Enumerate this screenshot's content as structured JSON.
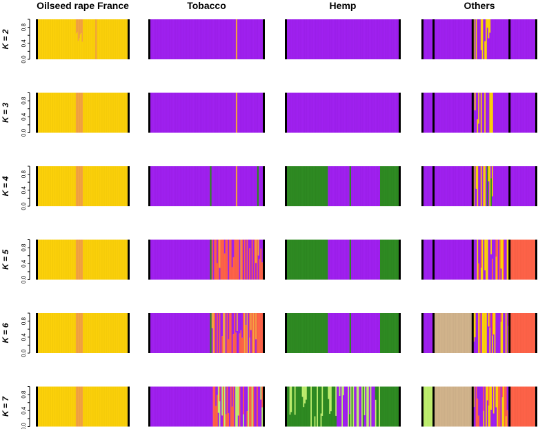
{
  "chart_data": {
    "type": "bar",
    "subtype": "stacked-admixture",
    "columns": [
      "Oilseed rape France",
      "Tobacco",
      "Hemp",
      "Others"
    ],
    "row_labels": [
      "K = 2",
      "K = 3",
      "K = 4",
      "K = 5",
      "K = 6",
      "K = 7"
    ],
    "y_ticks": [
      "0.0",
      "0.4",
      "0.8"
    ],
    "ylim": [
      0,
      1
    ],
    "colors": {
      "yellow": "#fdd20a",
      "orange": "#f5a442",
      "purple": "#a020f0",
      "green": "#2e8b22",
      "salmon": "#ff6348",
      "tan": "#d2b48c",
      "lightgreen": "#bfef6f"
    },
    "group_boundaries": [
      {
        "k": 2,
        "oilseed": [],
        "tobacco": [],
        "hemp": [],
        "others": [
          0.09,
          0.44,
          0.77
        ]
      },
      {
        "k": 3,
        "oilseed": [],
        "tobacco": [],
        "hemp": [],
        "others": [
          0.09,
          0.44,
          0.77
        ]
      },
      {
        "k": 4,
        "oilseed": [],
        "tobacco": [],
        "hemp": [],
        "others": [
          0.09,
          0.44,
          0.77
        ]
      },
      {
        "k": 5,
        "oilseed": [],
        "tobacco": [],
        "hemp": [],
        "others": [
          0.09,
          0.44,
          0.77
        ]
      },
      {
        "k": 6,
        "oilseed": [],
        "tobacco": [],
        "hemp": [],
        "others": [
          0.09,
          0.44,
          0.77
        ]
      },
      {
        "k": 7,
        "oilseed": [],
        "tobacco": [],
        "hemp": [],
        "others": [
          0.09,
          0.44,
          0.77
        ]
      }
    ],
    "panels": [
      [
        {
          "segments": [
            {
              "from": 0,
              "to": 0.42,
              "c": [
                "yellow"
              ]
            },
            {
              "from": 0.42,
              "to": 0.5,
              "c": [
                "yellow",
                "orange"
              ],
              "mix": [
                0.5,
                0.5
              ],
              "jag": true
            },
            {
              "from": 0.5,
              "to": 1,
              "c": [
                "yellow"
              ]
            }
          ],
          "stripes": [
            {
              "at": 0.64,
              "c": "orange"
            }
          ]
        },
        {
          "segments": [
            {
              "from": 0,
              "to": 1,
              "c": [
                "purple"
              ]
            }
          ],
          "stripes": [
            {
              "at": 0.76,
              "c": "orange"
            }
          ]
        },
        {
          "segments": [
            {
              "from": 0,
              "to": 1,
              "c": [
                "purple"
              ]
            }
          ],
          "stripes": []
        },
        {
          "segments": [
            {
              "from": 0,
              "to": 0.44,
              "c": [
                "purple"
              ]
            },
            {
              "from": 0.44,
              "to": 0.62,
              "c": [
                "purple",
                "yellow"
              ],
              "mix": [
                0.5,
                0.5
              ],
              "alt": true
            },
            {
              "from": 0.62,
              "to": 1,
              "c": [
                "purple"
              ]
            }
          ],
          "stripes": []
        }
      ],
      [
        {
          "segments": [
            {
              "from": 0,
              "to": 0.42,
              "c": [
                "yellow"
              ]
            },
            {
              "from": 0.42,
              "to": 0.5,
              "c": [
                "orange"
              ]
            },
            {
              "from": 0.5,
              "to": 1,
              "c": [
                "yellow"
              ]
            }
          ],
          "stripes": []
        },
        {
          "segments": [
            {
              "from": 0,
              "to": 1,
              "c": [
                "purple"
              ]
            }
          ],
          "stripes": [
            {
              "at": 0.76,
              "c": "orange"
            }
          ]
        },
        {
          "segments": [
            {
              "from": 0,
              "to": 1,
              "c": [
                "purple"
              ]
            }
          ],
          "stripes": []
        },
        {
          "segments": [
            {
              "from": 0,
              "to": 0.44,
              "c": [
                "purple"
              ]
            },
            {
              "from": 0.44,
              "to": 0.62,
              "c": [
                "purple",
                "yellow"
              ],
              "mix": [
                0.5,
                0.5
              ],
              "alt": true
            },
            {
              "from": 0.62,
              "to": 1,
              "c": [
                "purple"
              ]
            }
          ],
          "stripes": []
        }
      ],
      [
        {
          "segments": [
            {
              "from": 0,
              "to": 0.42,
              "c": [
                "yellow"
              ]
            },
            {
              "from": 0.42,
              "to": 0.5,
              "c": [
                "orange"
              ]
            },
            {
              "from": 0.5,
              "to": 1,
              "c": [
                "yellow"
              ]
            }
          ],
          "stripes": []
        },
        {
          "segments": [
            {
              "from": 0,
              "to": 1,
              "c": [
                "purple"
              ]
            }
          ],
          "stripes": [
            {
              "at": 0.53,
              "c": "green"
            },
            {
              "at": 0.76,
              "c": "orange"
            },
            {
              "at": 0.95,
              "c": "green"
            }
          ]
        },
        {
          "segments": [
            {
              "from": 0,
              "to": 0.37,
              "c": [
                "green"
              ]
            },
            {
              "from": 0.37,
              "to": 0.83,
              "c": [
                "purple"
              ]
            },
            {
              "from": 0.83,
              "to": 1,
              "c": [
                "green"
              ]
            }
          ],
          "stripes": [
            {
              "at": 0.56,
              "c": "green"
            }
          ]
        },
        {
          "segments": [
            {
              "from": 0,
              "to": 0.44,
              "c": [
                "purple"
              ]
            },
            {
              "from": 0.44,
              "to": 0.62,
              "c": [
                "purple",
                "yellow",
                "green"
              ],
              "mix": [
                0.4,
                0.4,
                0.2
              ],
              "alt": true
            },
            {
              "from": 0.62,
              "to": 1,
              "c": [
                "purple"
              ]
            }
          ],
          "stripes": []
        }
      ],
      [
        {
          "segments": [
            {
              "from": 0,
              "to": 0.42,
              "c": [
                "yellow"
              ]
            },
            {
              "from": 0.42,
              "to": 0.5,
              "c": [
                "orange"
              ]
            },
            {
              "from": 0.5,
              "to": 1,
              "c": [
                "yellow"
              ]
            }
          ],
          "stripes": []
        },
        {
          "segments": [
            {
              "from": 0,
              "to": 0.55,
              "c": [
                "purple"
              ]
            },
            {
              "from": 0.55,
              "to": 1,
              "c": [
                "salmon",
                "purple",
                "orange"
              ],
              "mix": [
                0.55,
                0.35,
                0.1
              ],
              "alt": true
            }
          ],
          "stripes": [
            {
              "at": 0.53,
              "c": "green"
            }
          ]
        },
        {
          "segments": [
            {
              "from": 0,
              "to": 0.37,
              "c": [
                "green"
              ]
            },
            {
              "from": 0.37,
              "to": 0.83,
              "c": [
                "purple"
              ]
            },
            {
              "from": 0.83,
              "to": 1,
              "c": [
                "green"
              ]
            }
          ],
          "stripes": [
            {
              "at": 0.56,
              "c": "green"
            }
          ]
        },
        {
          "segments": [
            {
              "from": 0,
              "to": 0.44,
              "c": [
                "purple"
              ]
            },
            {
              "from": 0.44,
              "to": 0.77,
              "c": [
                "purple",
                "yellow",
                "salmon"
              ],
              "mix": [
                0.45,
                0.35,
                0.2
              ],
              "alt": true
            },
            {
              "from": 0.77,
              "to": 1,
              "c": [
                "salmon"
              ]
            }
          ],
          "stripes": []
        }
      ],
      [
        {
          "segments": [
            {
              "from": 0,
              "to": 0.42,
              "c": [
                "yellow"
              ]
            },
            {
              "from": 0.42,
              "to": 0.5,
              "c": [
                "orange"
              ]
            },
            {
              "from": 0.5,
              "to": 1,
              "c": [
                "yellow"
              ]
            }
          ],
          "stripes": []
        },
        {
          "segments": [
            {
              "from": 0,
              "to": 0.55,
              "c": [
                "purple"
              ]
            },
            {
              "from": 0.55,
              "to": 1,
              "c": [
                "salmon",
                "purple",
                "orange"
              ],
              "mix": [
                0.55,
                0.35,
                0.1
              ],
              "alt": true
            }
          ],
          "stripes": [
            {
              "at": 0.53,
              "c": "green"
            }
          ]
        },
        {
          "segments": [
            {
              "from": 0,
              "to": 0.37,
              "c": [
                "green"
              ]
            },
            {
              "from": 0.37,
              "to": 0.83,
              "c": [
                "purple"
              ]
            },
            {
              "from": 0.83,
              "to": 1,
              "c": [
                "green"
              ]
            }
          ],
          "stripes": [
            {
              "at": 0.56,
              "c": "green"
            }
          ]
        },
        {
          "segments": [
            {
              "from": 0,
              "to": 0.09,
              "c": [
                "purple"
              ]
            },
            {
              "from": 0.09,
              "to": 0.44,
              "c": [
                "tan"
              ]
            },
            {
              "from": 0.44,
              "to": 0.77,
              "c": [
                "purple",
                "yellow",
                "salmon"
              ],
              "mix": [
                0.45,
                0.35,
                0.2
              ],
              "alt": true
            },
            {
              "from": 0.77,
              "to": 1,
              "c": [
                "salmon"
              ]
            }
          ],
          "stripes": []
        }
      ],
      [
        {
          "segments": [
            {
              "from": 0,
              "to": 0.42,
              "c": [
                "yellow"
              ]
            },
            {
              "from": 0.42,
              "to": 0.5,
              "c": [
                "orange"
              ]
            },
            {
              "from": 0.5,
              "to": 1,
              "c": [
                "yellow"
              ]
            }
          ],
          "stripes": []
        },
        {
          "segments": [
            {
              "from": 0,
              "to": 0.55,
              "c": [
                "purple"
              ]
            },
            {
              "from": 0.55,
              "to": 1,
              "c": [
                "salmon",
                "purple",
                "lightgreen"
              ],
              "mix": [
                0.5,
                0.35,
                0.15
              ],
              "alt": true
            }
          ],
          "stripes": []
        },
        {
          "segments": [
            {
              "from": 0,
              "to": 0.45,
              "c": [
                "green",
                "lightgreen"
              ],
              "mix": [
                0.85,
                0.15
              ],
              "alt": true
            },
            {
              "from": 0.45,
              "to": 0.83,
              "c": [
                "purple",
                "lightgreen",
                "green"
              ],
              "mix": [
                0.5,
                0.3,
                0.2
              ],
              "alt": true
            },
            {
              "from": 0.83,
              "to": 1,
              "c": [
                "green"
              ]
            }
          ],
          "stripes": []
        },
        {
          "segments": [
            {
              "from": 0,
              "to": 0.09,
              "c": [
                "lightgreen"
              ]
            },
            {
              "from": 0.09,
              "to": 0.44,
              "c": [
                "tan"
              ]
            },
            {
              "from": 0.44,
              "to": 0.77,
              "c": [
                "purple",
                "yellow",
                "salmon"
              ],
              "mix": [
                0.45,
                0.35,
                0.2
              ],
              "alt": true
            },
            {
              "from": 0.77,
              "to": 1,
              "c": [
                "salmon"
              ]
            }
          ],
          "stripes": []
        }
      ]
    ]
  }
}
